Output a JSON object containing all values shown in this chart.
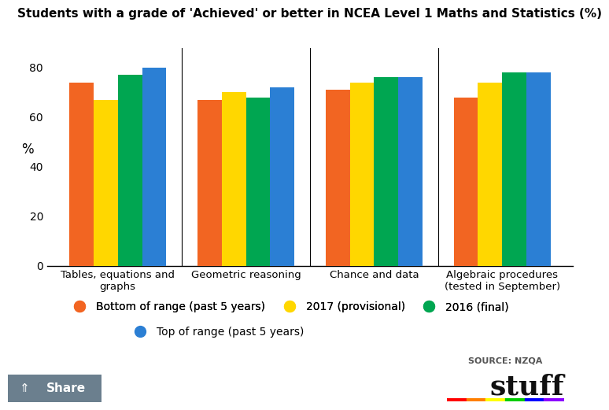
{
  "title": "Students with a grade of 'Achieved' or better in NCEA Level 1 Maths and Statistics (%)",
  "categories": [
    "Tables, equations and\ngraphs",
    "Geometric reasoning",
    "Chance and data",
    "Algebraic procedures\n(tested in September)"
  ],
  "series_order": [
    "Bottom of range (past 5 years)",
    "2017 (provisional)",
    "2016 (final)",
    "Top of range (past 5 years)"
  ],
  "series": {
    "Bottom of range (past 5 years)": [
      74,
      67,
      71,
      68
    ],
    "2017 (provisional)": [
      67,
      70,
      74,
      74
    ],
    "2016 (final)": [
      77,
      68,
      76,
      78
    ],
    "Top of range (past 5 years)": [
      80,
      72,
      76,
      78
    ]
  },
  "colors": {
    "Bottom of range (past 5 years)": "#F26522",
    "2017 (provisional)": "#FFD700",
    "2016 (final)": "#00A651",
    "Top of range (past 5 years)": "#2B7FD4"
  },
  "ylabel": "%",
  "ylim": [
    0,
    88
  ],
  "yticks": [
    0,
    20,
    40,
    60,
    80
  ],
  "background_color": "#FFFFFF",
  "source_text": "SOURCE: NZQA",
  "bar_width": 0.19,
  "stuff_underline_colors": [
    "#FF0000",
    "#FF7F00",
    "#FFFF00",
    "#00CC00",
    "#0000FF",
    "#8B00FF"
  ]
}
